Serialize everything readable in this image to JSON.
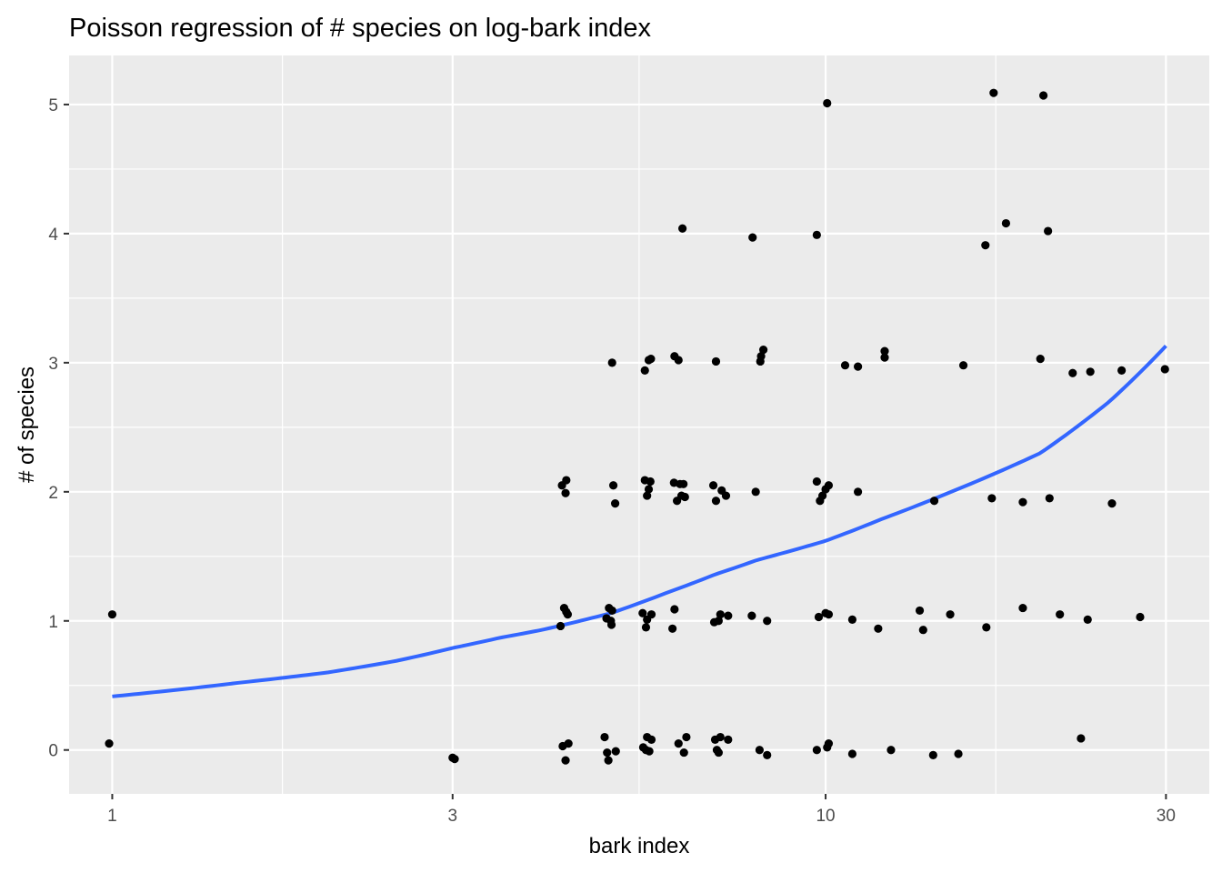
{
  "chart_data": {
    "type": "scatter",
    "title": "Poisson regression of # species on log-bark index",
    "xlabel": "bark index",
    "ylabel": "# of species",
    "x_scale": "log10",
    "xlim": [
      0.87,
      34.5
    ],
    "ylim": [
      -0.34,
      5.38
    ],
    "x_ticks": [
      {
        "value": 1,
        "label": "1"
      },
      {
        "value": 3,
        "label": "3"
      },
      {
        "value": 10,
        "label": "10"
      },
      {
        "value": 30,
        "label": "30"
      }
    ],
    "y_ticks": [
      {
        "value": 0,
        "label": "0"
      },
      {
        "value": 1,
        "label": "1"
      },
      {
        "value": 2,
        "label": "2"
      },
      {
        "value": 3,
        "label": "3"
      },
      {
        "value": 4,
        "label": "4"
      },
      {
        "value": 5,
        "label": "5"
      }
    ],
    "grid": true,
    "background": "#ebebeb",
    "grid_color": "#ffffff",
    "point_color": "#000000",
    "fit_color": "#3366ff",
    "points": [
      {
        "x": 0.99,
        "y": 0.05
      },
      {
        "x": 1.0,
        "y": 1.05
      },
      {
        "x": 3.0,
        "y": -0.06
      },
      {
        "x": 3.02,
        "y": -0.07
      },
      {
        "x": 4.25,
        "y": 0.96
      },
      {
        "x": 4.3,
        "y": 1.1
      },
      {
        "x": 4.33,
        "y": 1.07
      },
      {
        "x": 4.35,
        "y": 1.05
      },
      {
        "x": 4.27,
        "y": 2.05
      },
      {
        "x": 4.33,
        "y": 2.09
      },
      {
        "x": 4.32,
        "y": 1.99
      },
      {
        "x": 4.28,
        "y": 0.03
      },
      {
        "x": 4.32,
        "y": -0.08
      },
      {
        "x": 4.36,
        "y": 0.05
      },
      {
        "x": 4.9,
        "y": 0.1
      },
      {
        "x": 4.94,
        "y": -0.02
      },
      {
        "x": 4.96,
        "y": -0.08
      },
      {
        "x": 5.08,
        "y": -0.01
      },
      {
        "x": 4.93,
        "y": 1.02
      },
      {
        "x": 4.97,
        "y": 1.1
      },
      {
        "x": 5.0,
        "y": 1.0
      },
      {
        "x": 5.01,
        "y": 0.97
      },
      {
        "x": 5.02,
        "y": 1.08
      },
      {
        "x": 5.04,
        "y": 2.05
      },
      {
        "x": 5.07,
        "y": 1.91
      },
      {
        "x": 5.02,
        "y": 3.0
      },
      {
        "x": 5.55,
        "y": 0.02
      },
      {
        "x": 5.6,
        "y": 0.0
      },
      {
        "x": 5.62,
        "y": 0.1
      },
      {
        "x": 5.66,
        "y": -0.01
      },
      {
        "x": 5.7,
        "y": 0.08
      },
      {
        "x": 5.54,
        "y": 1.06
      },
      {
        "x": 5.6,
        "y": 0.95
      },
      {
        "x": 5.7,
        "y": 1.05
      },
      {
        "x": 5.62,
        "y": 1.01
      },
      {
        "x": 5.58,
        "y": 2.09
      },
      {
        "x": 5.62,
        "y": 1.97
      },
      {
        "x": 5.65,
        "y": 2.02
      },
      {
        "x": 5.68,
        "y": 2.08
      },
      {
        "x": 5.58,
        "y": 2.94
      },
      {
        "x": 5.65,
        "y": 3.02
      },
      {
        "x": 5.69,
        "y": 3.03
      },
      {
        "x": 6.22,
        "y": 0.05
      },
      {
        "x": 6.33,
        "y": -0.02
      },
      {
        "x": 6.38,
        "y": 0.1
      },
      {
        "x": 6.1,
        "y": 0.94
      },
      {
        "x": 6.14,
        "y": 1.09
      },
      {
        "x": 6.13,
        "y": 2.07
      },
      {
        "x": 6.19,
        "y": 1.93
      },
      {
        "x": 6.25,
        "y": 2.06
      },
      {
        "x": 6.28,
        "y": 1.97
      },
      {
        "x": 6.32,
        "y": 2.06
      },
      {
        "x": 6.35,
        "y": 1.96
      },
      {
        "x": 6.14,
        "y": 3.05
      },
      {
        "x": 6.22,
        "y": 3.02
      },
      {
        "x": 6.3,
        "y": 4.04
      },
      {
        "x": 7.0,
        "y": 0.08
      },
      {
        "x": 7.04,
        "y": 0.0
      },
      {
        "x": 7.08,
        "y": -0.02
      },
      {
        "x": 7.12,
        "y": 0.1
      },
      {
        "x": 7.3,
        "y": 0.08
      },
      {
        "x": 6.98,
        "y": 0.99
      },
      {
        "x": 7.12,
        "y": 1.05
      },
      {
        "x": 7.3,
        "y": 1.04
      },
      {
        "x": 7.08,
        "y": 1.0
      },
      {
        "x": 6.96,
        "y": 2.05
      },
      {
        "x": 7.02,
        "y": 1.93
      },
      {
        "x": 7.15,
        "y": 2.01
      },
      {
        "x": 7.25,
        "y": 1.97
      },
      {
        "x": 7.02,
        "y": 3.01
      },
      {
        "x": 7.9,
        "y": 3.97
      },
      {
        "x": 8.08,
        "y": 0.0
      },
      {
        "x": 8.28,
        "y": -0.04
      },
      {
        "x": 7.88,
        "y": 1.04
      },
      {
        "x": 8.28,
        "y": 1.0
      },
      {
        "x": 7.98,
        "y": 2.0
      },
      {
        "x": 8.1,
        "y": 3.01
      },
      {
        "x": 8.12,
        "y": 3.05
      },
      {
        "x": 8.18,
        "y": 3.1
      },
      {
        "x": 9.72,
        "y": 0.0
      },
      {
        "x": 10.05,
        "y": 0.02
      },
      {
        "x": 10.1,
        "y": 0.05
      },
      {
        "x": 9.78,
        "y": 1.03
      },
      {
        "x": 10.0,
        "y": 1.06
      },
      {
        "x": 10.1,
        "y": 1.05
      },
      {
        "x": 9.72,
        "y": 2.08
      },
      {
        "x": 9.82,
        "y": 1.93
      },
      {
        "x": 9.9,
        "y": 1.97
      },
      {
        "x": 10.0,
        "y": 2.02
      },
      {
        "x": 10.1,
        "y": 2.05
      },
      {
        "x": 9.72,
        "y": 3.99
      },
      {
        "x": 10.05,
        "y": 5.01
      },
      {
        "x": 10.9,
        "y": -0.03
      },
      {
        "x": 10.9,
        "y": 1.01
      },
      {
        "x": 11.1,
        "y": 2.0
      },
      {
        "x": 10.65,
        "y": 2.98
      },
      {
        "x": 11.1,
        "y": 2.97
      },
      {
        "x": 11.85,
        "y": 0.94
      },
      {
        "x": 12.1,
        "y": 3.04
      },
      {
        "x": 12.1,
        "y": 3.09
      },
      {
        "x": 12.35,
        "y": 0.0
      },
      {
        "x": 13.55,
        "y": 1.08
      },
      {
        "x": 13.7,
        "y": 0.93
      },
      {
        "x": 14.2,
        "y": 1.93
      },
      {
        "x": 14.15,
        "y": -0.04
      },
      {
        "x": 14.95,
        "y": 1.05
      },
      {
        "x": 15.35,
        "y": -0.03
      },
      {
        "x": 15.6,
        "y": 2.98
      },
      {
        "x": 16.75,
        "y": 3.91
      },
      {
        "x": 16.8,
        "y": 0.95
      },
      {
        "x": 17.1,
        "y": 1.95
      },
      {
        "x": 17.2,
        "y": 5.09
      },
      {
        "x": 17.9,
        "y": 4.08
      },
      {
        "x": 18.9,
        "y": 1.1
      },
      {
        "x": 18.9,
        "y": 1.92
      },
      {
        "x": 20.0,
        "y": 3.03
      },
      {
        "x": 20.2,
        "y": 5.07
      },
      {
        "x": 20.6,
        "y": 1.95
      },
      {
        "x": 20.5,
        "y": 4.02
      },
      {
        "x": 21.3,
        "y": 1.05
      },
      {
        "x": 22.2,
        "y": 2.92
      },
      {
        "x": 22.8,
        "y": 0.09
      },
      {
        "x": 23.3,
        "y": 1.01
      },
      {
        "x": 23.5,
        "y": 2.93
      },
      {
        "x": 25.2,
        "y": 1.91
      },
      {
        "x": 26.0,
        "y": 2.94
      },
      {
        "x": 27.6,
        "y": 1.03
      },
      {
        "x": 29.9,
        "y": 2.95
      }
    ],
    "fit": [
      {
        "x": 1.0,
        "y": 0.415
      },
      {
        "x": 1.5,
        "y": 0.52
      },
      {
        "x": 2.0,
        "y": 0.6
      },
      {
        "x": 2.5,
        "y": 0.69
      },
      {
        "x": 3.0,
        "y": 0.79
      },
      {
        "x": 3.5,
        "y": 0.87
      },
      {
        "x": 4.0,
        "y": 0.93
      },
      {
        "x": 5.0,
        "y": 1.06
      },
      {
        "x": 6.0,
        "y": 1.22
      },
      {
        "x": 7.0,
        "y": 1.36
      },
      {
        "x": 8.0,
        "y": 1.47
      },
      {
        "x": 10.0,
        "y": 1.62
      },
      {
        "x": 12.0,
        "y": 1.79
      },
      {
        "x": 15.0,
        "y": 2.0
      },
      {
        "x": 20.0,
        "y": 2.3
      },
      {
        "x": 25.0,
        "y": 2.7
      },
      {
        "x": 30.0,
        "y": 3.13
      }
    ]
  }
}
